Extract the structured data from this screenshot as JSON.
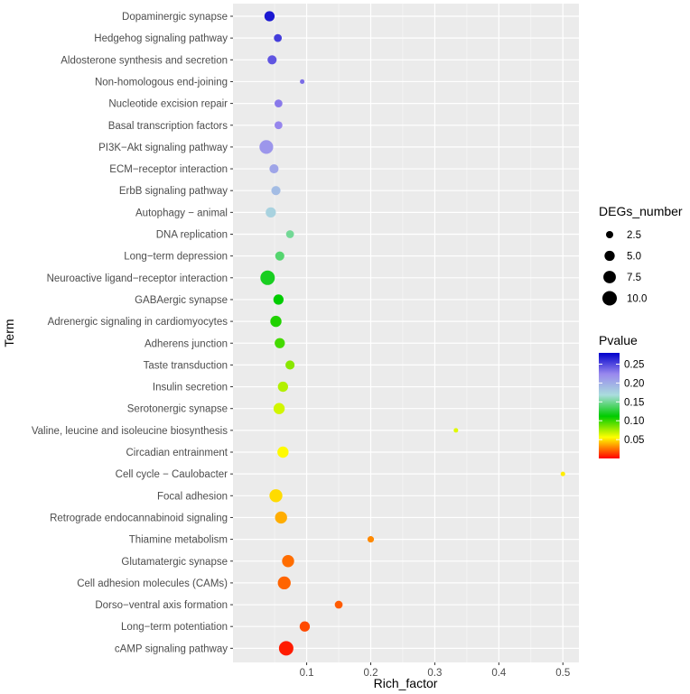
{
  "chart_data": {
    "type": "scatter",
    "title": "",
    "xlabel": "Rich_factor",
    "ylabel": "Term",
    "xlim": [
      -0.015,
      0.525
    ],
    "x_ticks": [
      0.1,
      0.2,
      0.3,
      0.4,
      0.5
    ],
    "x_tick_labels": [
      "0.1",
      "0.2",
      "0.3",
      "0.4",
      "0.5"
    ],
    "grid": true,
    "points": [
      {
        "term": "Dopaminergic synapse",
        "rich_factor": 0.042,
        "degs": 5,
        "pvalue": 0.27
      },
      {
        "term": "Hedgehog signaling pathway",
        "rich_factor": 0.055,
        "degs": 3,
        "pvalue": 0.255
      },
      {
        "term": "Aldosterone synthesis and secretion",
        "rich_factor": 0.046,
        "degs": 4,
        "pvalue": 0.245
      },
      {
        "term": "Non-homologous end-joining",
        "rich_factor": 0.093,
        "degs": 1,
        "pvalue": 0.235
      },
      {
        "term": "Nucleotide excision repair",
        "rich_factor": 0.056,
        "degs": 3,
        "pvalue": 0.23
      },
      {
        "term": "Basal transcription factors",
        "rich_factor": 0.056,
        "degs": 3,
        "pvalue": 0.225
      },
      {
        "term": "PI3K−Akt signaling pathway",
        "rich_factor": 0.037,
        "degs": 9,
        "pvalue": 0.215
      },
      {
        "term": "ECM−receptor interaction",
        "rich_factor": 0.049,
        "degs": 4,
        "pvalue": 0.205
      },
      {
        "term": "ErbB signaling pathway",
        "rich_factor": 0.052,
        "degs": 4,
        "pvalue": 0.19
      },
      {
        "term": "Autophagy − animal",
        "rich_factor": 0.044,
        "degs": 5,
        "pvalue": 0.175
      },
      {
        "term": "DNA replication",
        "rich_factor": 0.074,
        "degs": 3,
        "pvalue": 0.15
      },
      {
        "term": "Long−term depression",
        "rich_factor": 0.058,
        "degs": 4,
        "pvalue": 0.14
      },
      {
        "term": "Neuroactive ligand−receptor interaction",
        "rich_factor": 0.039,
        "degs": 10,
        "pvalue": 0.12
      },
      {
        "term": "GABAergic synapse",
        "rich_factor": 0.056,
        "degs": 5,
        "pvalue": 0.112
      },
      {
        "term": "Adrenergic signaling in cardiomyocytes",
        "rich_factor": 0.052,
        "degs": 6,
        "pvalue": 0.105
      },
      {
        "term": "Adherens junction",
        "rich_factor": 0.058,
        "degs": 5,
        "pvalue": 0.097
      },
      {
        "term": "Taste transduction",
        "rich_factor": 0.074,
        "degs": 4,
        "pvalue": 0.082
      },
      {
        "term": "Insulin secretion",
        "rich_factor": 0.063,
        "degs": 5,
        "pvalue": 0.073
      },
      {
        "term": "Serotonergic synapse",
        "rich_factor": 0.057,
        "degs": 6,
        "pvalue": 0.066
      },
      {
        "term": "Valine, leucine and isoleucine biosynthesis",
        "rich_factor": 0.333,
        "degs": 1,
        "pvalue": 0.063
      },
      {
        "term": "Circadian entrainment",
        "rich_factor": 0.063,
        "degs": 6,
        "pvalue": 0.055
      },
      {
        "term": "Cell cycle − Caulobacter",
        "rich_factor": 0.5,
        "degs": 1,
        "pvalue": 0.052
      },
      {
        "term": "Focal adhesion",
        "rich_factor": 0.052,
        "degs": 8,
        "pvalue": 0.048
      },
      {
        "term": "Retrograde endocannabinoid signaling",
        "rich_factor": 0.06,
        "degs": 7,
        "pvalue": 0.038
      },
      {
        "term": "Thiamine metabolism",
        "rich_factor": 0.2,
        "degs": 2,
        "pvalue": 0.03
      },
      {
        "term": "Glutamatergic synapse",
        "rich_factor": 0.071,
        "degs": 7,
        "pvalue": 0.024
      },
      {
        "term": "Cell adhesion molecules (CAMs)",
        "rich_factor": 0.065,
        "degs": 8,
        "pvalue": 0.022
      },
      {
        "term": "Dorso−ventral axis formation",
        "rich_factor": 0.15,
        "degs": 3,
        "pvalue": 0.02
      },
      {
        "term": "Long−term potentiation",
        "rich_factor": 0.097,
        "degs": 5,
        "pvalue": 0.016
      },
      {
        "term": "cAMP signaling pathway",
        "rich_factor": 0.068,
        "degs": 10,
        "pvalue": 0.006
      }
    ],
    "size_legend": {
      "title": "DEGs_number",
      "values": [
        2.5,
        5.0,
        7.5,
        10.0
      ],
      "labels": [
        "2.5",
        "5.0",
        "7.5",
        "10.0"
      ]
    },
    "color_legend": {
      "title": "Pvalue",
      "min": 0.0,
      "max": 0.28,
      "ticks": [
        0.25,
        0.2,
        0.15,
        0.1,
        0.05
      ],
      "tick_labels": [
        "0.25",
        "0.20",
        "0.15",
        "0.10",
        "0.05"
      ],
      "color_stops": [
        "#ff0000",
        "#ffff00",
        "#00cc00",
        "#aadddd",
        "#9988ee",
        "#0000cc"
      ]
    },
    "legend_position": "right"
  }
}
